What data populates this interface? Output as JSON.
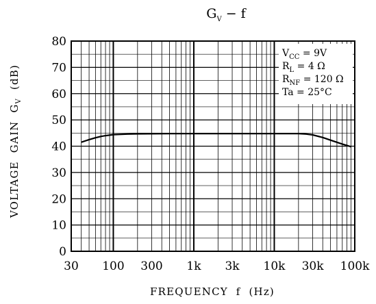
{
  "chart_data": {
    "type": "line",
    "title": {
      "main": "G",
      "sub": "V",
      "rest": " − f"
    },
    "xlabel": "FREQUENCY  f  (Hz)",
    "ylabel": {
      "main": "VOLTAGE  GAIN  G",
      "sub": "V",
      "rest": "  (dB)"
    },
    "x_scale": "log",
    "xlim": [
      30,
      100000
    ],
    "ylim": [
      0,
      80
    ],
    "grid": true,
    "x_ticks": [
      {
        "value": 30,
        "label": "30"
      },
      {
        "value": 100,
        "label": "100"
      },
      {
        "value": 300,
        "label": "300"
      },
      {
        "value": 1000,
        "label": "1k"
      },
      {
        "value": 3000,
        "label": "3k"
      },
      {
        "value": 10000,
        "label": "10k"
      },
      {
        "value": 30000,
        "label": "30k"
      },
      {
        "value": 100000,
        "label": "100k"
      }
    ],
    "y_ticks": [
      {
        "value": 0,
        "label": "0"
      },
      {
        "value": 10,
        "label": "10"
      },
      {
        "value": 20,
        "label": "20"
      },
      {
        "value": 30,
        "label": "30"
      },
      {
        "value": 40,
        "label": "40"
      },
      {
        "value": 50,
        "label": "50"
      },
      {
        "value": 60,
        "label": "60"
      },
      {
        "value": 70,
        "label": "70"
      },
      {
        "value": 80,
        "label": "80"
      }
    ],
    "conditions": [
      {
        "main": "V",
        "sub": "CC",
        "rest": " = 9V"
      },
      {
        "main": "R",
        "sub": "L",
        "rest": " = 4 Ω"
      },
      {
        "main": "R",
        "sub": "NF",
        "rest": " = 120 Ω"
      },
      {
        "main": "Ta",
        "sub": "",
        "rest": " = 25°C"
      }
    ],
    "series": [
      {
        "x": [
          40,
          50,
          60,
          70,
          80,
          100,
          150,
          200,
          500,
          1000,
          5000,
          10000,
          15000,
          20000,
          25000,
          30000,
          40000,
          50000,
          70000,
          90000
        ],
        "y": [
          41.5,
          42.5,
          43.2,
          43.7,
          44.0,
          44.4,
          44.6,
          44.7,
          44.8,
          44.8,
          44.8,
          44.8,
          44.8,
          44.8,
          44.6,
          44.3,
          43.3,
          42.3,
          40.8,
          39.8
        ]
      }
    ]
  }
}
